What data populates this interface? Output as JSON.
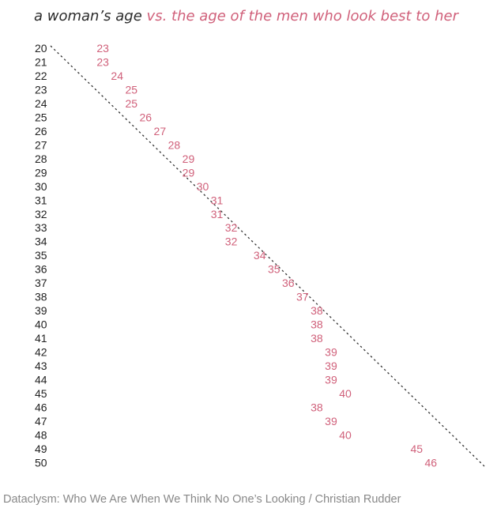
{
  "title": {
    "part1": "a woman’s age",
    "part2": "vs. the age of the men who look best to her"
  },
  "source": "Dataclysm: Who We Are When We Think No One’s Looking / Christian Rudder",
  "colors": {
    "title_dark": "#2b2b2b",
    "accent": "#d0607a",
    "axis_text": "#222222",
    "reference_line": "#333333"
  },
  "chart_data": {
    "type": "scatter",
    "ylabel": "",
    "xlabel": "",
    "y_axis_label_meaning": "",
    "y_ticks": [
      20,
      21,
      22,
      23,
      24,
      25,
      26,
      27,
      28,
      29,
      30,
      31,
      32,
      33,
      34,
      35,
      36,
      37,
      38,
      39,
      40,
      41,
      42,
      43,
      44,
      45,
      46,
      47,
      48,
      49,
      50
    ],
    "points": [
      {
        "woman_age": 20,
        "men_age": 23
      },
      {
        "woman_age": 21,
        "men_age": 23
      },
      {
        "woman_age": 22,
        "men_age": 24
      },
      {
        "woman_age": 23,
        "men_age": 25
      },
      {
        "woman_age": 24,
        "men_age": 25
      },
      {
        "woman_age": 25,
        "men_age": 26
      },
      {
        "woman_age": 26,
        "men_age": 27
      },
      {
        "woman_age": 27,
        "men_age": 28
      },
      {
        "woman_age": 28,
        "men_age": 29
      },
      {
        "woman_age": 29,
        "men_age": 29
      },
      {
        "woman_age": 30,
        "men_age": 30
      },
      {
        "woman_age": 31,
        "men_age": 31
      },
      {
        "woman_age": 32,
        "men_age": 31
      },
      {
        "woman_age": 33,
        "men_age": 32
      },
      {
        "woman_age": 34,
        "men_age": 32
      },
      {
        "woman_age": 35,
        "men_age": 34
      },
      {
        "woman_age": 36,
        "men_age": 35
      },
      {
        "woman_age": 37,
        "men_age": 36
      },
      {
        "woman_age": 38,
        "men_age": 37
      },
      {
        "woman_age": 39,
        "men_age": 38
      },
      {
        "woman_age": 40,
        "men_age": 38
      },
      {
        "woman_age": 41,
        "men_age": 38
      },
      {
        "woman_age": 42,
        "men_age": 39
      },
      {
        "woman_age": 43,
        "men_age": 39
      },
      {
        "woman_age": 44,
        "men_age": 39
      },
      {
        "woman_age": 45,
        "men_age": 40
      },
      {
        "woman_age": 46,
        "men_age": 38
      },
      {
        "woman_age": 47,
        "men_age": 39
      },
      {
        "woman_age": 48,
        "men_age": 40
      },
      {
        "woman_age": 49,
        "men_age": 45
      },
      {
        "woman_age": 50,
        "men_age": 46
      }
    ],
    "reference_line": "y = x (dashed diagonal)",
    "grid": false,
    "legend": "none"
  }
}
